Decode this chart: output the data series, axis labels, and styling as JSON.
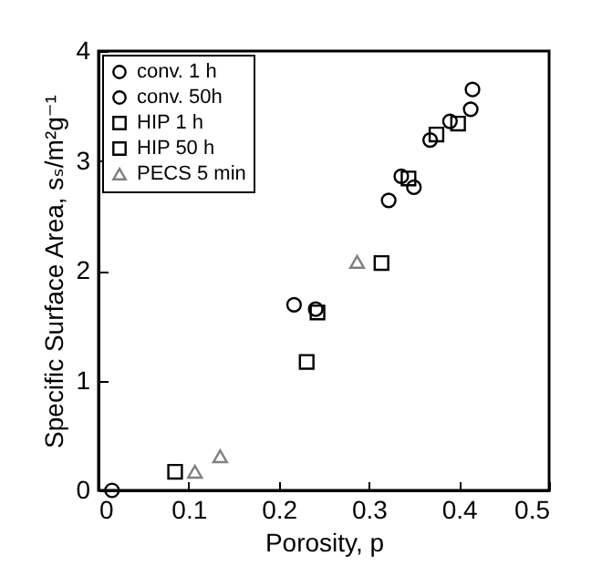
{
  "chart_data": {
    "type": "scatter",
    "xlabel": "Porosity, p",
    "ylabel": "Specific Surface Area, sₛ/m²g⁻¹",
    "xlim": [
      0,
      0.5
    ],
    "xticks": [
      0,
      0.1,
      0.2,
      0.3,
      0.4,
      0.5
    ],
    "ylim": [
      0,
      4
    ],
    "yticks": [
      0,
      1,
      2,
      3,
      4
    ],
    "grid": false,
    "legend": "top left",
    "series": [
      {
        "name": "conv. 1 h",
        "color": "#000000",
        "marker": "circle",
        "x": [
          0.015,
          0.217,
          0.336,
          0.368,
          0.39
        ],
        "values": [
          0,
          1.69,
          2.86,
          3.19,
          3.36
        ]
      },
      {
        "name": "conv. 50h",
        "color": "#000000",
        "marker": "circle",
        "x": [
          0.241,
          0.322,
          0.35,
          0.413,
          0.415
        ],
        "values": [
          1.65,
          2.64,
          2.76,
          3.47,
          3.65
        ]
      },
      {
        "name": "HIP 1 h",
        "color": "#000000",
        "marker": "square",
        "x": [
          0.085,
          0.344,
          0.375,
          0.399
        ],
        "values": [
          0.17,
          2.84,
          3.24,
          3.34
        ]
      },
      {
        "name": "HIP 50 h",
        "color": "#000000",
        "marker": "square",
        "x": [
          0.231,
          0.243,
          0.314
        ],
        "values": [
          1.17,
          1.62,
          2.07
        ]
      },
      {
        "name": "PECS 5 min",
        "color": "#808080",
        "marker": "triangle",
        "x": [
          0.107,
          0.135,
          0.287
        ],
        "values": [
          0.17,
          0.31,
          2.08
        ]
      }
    ]
  }
}
